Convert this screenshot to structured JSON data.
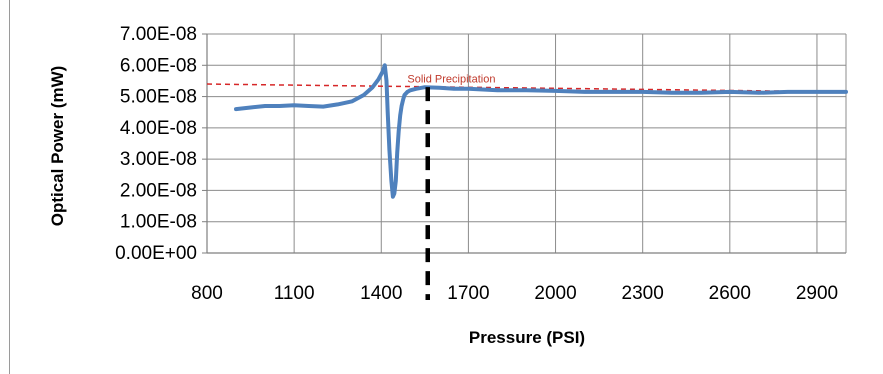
{
  "chart_data": {
    "type": "line",
    "title": "",
    "xlabel": "Pressure (PSI)",
    "ylabel": "Optical Power (mW)",
    "xlim": [
      800,
      3000
    ],
    "ylim": [
      0,
      7e-08
    ],
    "xticks": [
      "800",
      "1100",
      "1400",
      "1700",
      "2000",
      "2300",
      "2600",
      "2900"
    ],
    "xtick_values": [
      800,
      1100,
      1400,
      1700,
      2000,
      2300,
      2600,
      2900
    ],
    "yticks": [
      "0.00E+00",
      "1.00E-08",
      "2.00E-08",
      "3.00E-08",
      "4.00E-08",
      "5.00E-08",
      "6.00E-08",
      "7.00E-08"
    ],
    "ytick_values": [
      0,
      1e-08,
      2e-08,
      3e-08,
      4e-08,
      5e-08,
      6e-08,
      7e-08
    ],
    "grid": true,
    "series": [
      {
        "color": "#4f81bd",
        "x": [
          900,
          950,
          1000,
          1050,
          1100,
          1150,
          1200,
          1250,
          1300,
          1340,
          1370,
          1390,
          1405,
          1412,
          1418,
          1422,
          1428,
          1435,
          1440,
          1445,
          1450,
          1455,
          1460,
          1465,
          1470,
          1475,
          1480,
          1490,
          1500,
          1520,
          1550,
          1600,
          1650,
          1700,
          1800,
          1900,
          2000,
          2100,
          2200,
          2300,
          2400,
          2500,
          2600,
          2700,
          2800,
          2900,
          3000
        ],
        "y": [
          4.6e-08,
          4.65e-08,
          4.7e-08,
          4.7e-08,
          4.72e-08,
          4.7e-08,
          4.68e-08,
          4.75e-08,
          4.85e-08,
          5.05e-08,
          5.3e-08,
          5.55e-08,
          5.8e-08,
          6e-08,
          5.5e-08,
          4.5e-08,
          3.3e-08,
          2.3e-08,
          1.8e-08,
          1.9e-08,
          2.3e-08,
          3.2e-08,
          3.9e-08,
          4.4e-08,
          4.7e-08,
          4.9e-08,
          5.05e-08,
          5.15e-08,
          5.2e-08,
          5.25e-08,
          5.3e-08,
          5.28e-08,
          5.25e-08,
          5.25e-08,
          5.2e-08,
          5.2e-08,
          5.18e-08,
          5.15e-08,
          5.15e-08,
          5.15e-08,
          5.12e-08,
          5.12e-08,
          5.15e-08,
          5.12e-08,
          5.15e-08,
          5.15e-08,
          5.15e-08
        ]
      }
    ],
    "reference_line": {
      "color": "#d62728",
      "style": "dashed",
      "x": [
        800,
        3000
      ],
      "y": [
        5.4e-08,
        5.15e-08
      ]
    },
    "vertical_line": {
      "x": 1560,
      "color": "#000000",
      "style": "dashed"
    },
    "annotation": {
      "text": "Solid Precipitation",
      "x": 1490,
      "y": 5.45e-08,
      "color": "#c0392b"
    }
  }
}
